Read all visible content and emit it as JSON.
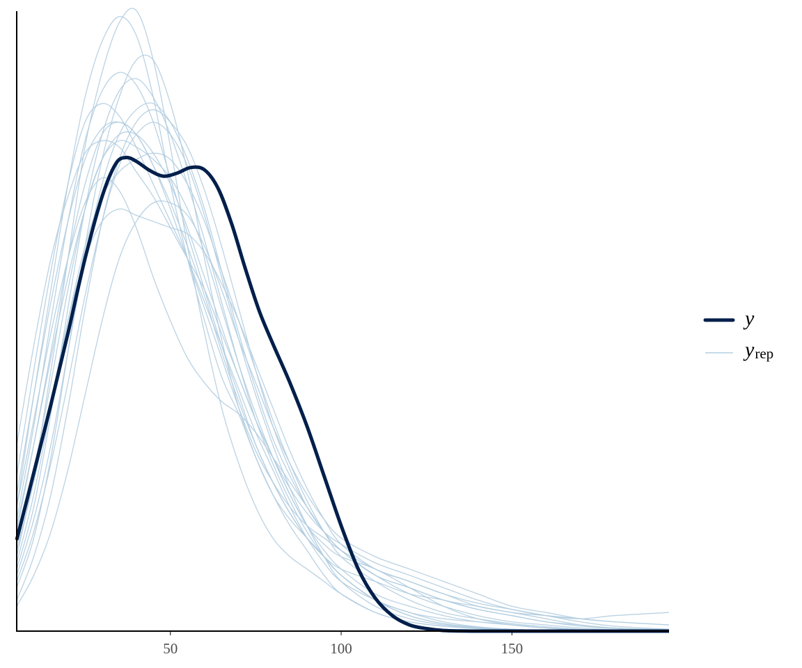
{
  "chart_data": {
    "type": "line",
    "xlim": [
      5,
      196
    ],
    "ylim": [
      0,
      1
    ],
    "x_ticks": [
      50,
      100,
      150
    ],
    "x_tick_labels": [
      "50",
      "100",
      "150"
    ],
    "y_ticks": [],
    "grid": false,
    "legend_position": "right",
    "legend": [
      {
        "label": "y",
        "style": "thick",
        "color": "#011f4b"
      },
      {
        "label": "y",
        "subscript": "rep",
        "style": "thin",
        "color": "#b3cde0"
      }
    ],
    "colors": {
      "y": "#011f4b",
      "yrep": "#b3cde0",
      "axis": "#000000"
    },
    "series": [
      {
        "name": "y",
        "x": [
          5,
          10,
          15,
          20,
          25,
          30,
          34,
          37,
          40,
          44,
          48,
          52,
          56,
          60,
          64,
          68,
          72,
          76,
          80,
          85,
          90,
          95,
          100,
          105,
          110,
          115,
          120,
          125,
          130,
          140,
          150,
          160,
          170,
          180,
          196
        ],
        "y": [
          0.147,
          0.255,
          0.365,
          0.48,
          0.6,
          0.7,
          0.753,
          0.763,
          0.757,
          0.742,
          0.733,
          0.738,
          0.747,
          0.743,
          0.713,
          0.655,
          0.583,
          0.516,
          0.463,
          0.4,
          0.33,
          0.25,
          0.17,
          0.1,
          0.053,
          0.025,
          0.01,
          0.004,
          0.001,
          0,
          0,
          0,
          0,
          0,
          0
        ]
      },
      {
        "name": "",
        "x": [
          5,
          10,
          15,
          20,
          25,
          30,
          35,
          40,
          45,
          50,
          55,
          60,
          65,
          70,
          75,
          80,
          85,
          90,
          95,
          100,
          110,
          120,
          130,
          140,
          150,
          160,
          170,
          180,
          196
        ],
        "y": [
          0.2,
          0.38,
          0.55,
          0.72,
          0.86,
          0.95,
          0.99,
          0.96,
          0.86,
          0.72,
          0.6,
          0.5,
          0.41,
          0.35,
          0.28,
          0.22,
          0.17,
          0.13,
          0.09,
          0.06,
          0.03,
          0.015,
          0.008,
          0.004,
          0.002,
          0.001,
          0,
          0,
          0
        ]
      },
      {
        "name": "",
        "x": [
          5,
          10,
          15,
          20,
          25,
          30,
          35,
          40,
          45,
          50,
          55,
          60,
          65,
          70,
          75,
          80,
          85,
          90,
          95,
          100,
          110,
          120,
          130,
          140,
          150,
          160,
          170,
          180,
          196
        ],
        "y": [
          0.12,
          0.25,
          0.42,
          0.6,
          0.78,
          0.9,
          0.98,
          1.0,
          0.92,
          0.78,
          0.62,
          0.48,
          0.36,
          0.27,
          0.2,
          0.15,
          0.12,
          0.1,
          0.08,
          0.06,
          0.03,
          0.015,
          0.008,
          0.004,
          0.002,
          0.001,
          0,
          0,
          0
        ]
      },
      {
        "name": "",
        "x": [
          5,
          10,
          15,
          20,
          25,
          30,
          35,
          40,
          45,
          50,
          55,
          60,
          65,
          70,
          75,
          80,
          85,
          90,
          95,
          100,
          110,
          120,
          130,
          140,
          150,
          160,
          170,
          180,
          196
        ],
        "y": [
          0.18,
          0.33,
          0.5,
          0.66,
          0.79,
          0.87,
          0.9,
          0.88,
          0.82,
          0.73,
          0.64,
          0.55,
          0.46,
          0.38,
          0.3,
          0.24,
          0.19,
          0.15,
          0.12,
          0.09,
          0.05,
          0.025,
          0.012,
          0.006,
          0.003,
          0.001,
          0,
          0,
          0
        ]
      },
      {
        "name": "",
        "x": [
          5,
          10,
          15,
          20,
          25,
          30,
          35,
          40,
          45,
          50,
          55,
          60,
          65,
          70,
          75,
          80,
          85,
          90,
          95,
          100,
          110,
          120,
          130,
          140,
          150,
          160,
          170,
          180,
          196
        ],
        "y": [
          0.1,
          0.2,
          0.35,
          0.52,
          0.68,
          0.8,
          0.87,
          0.89,
          0.86,
          0.8,
          0.72,
          0.63,
          0.53,
          0.43,
          0.34,
          0.27,
          0.21,
          0.16,
          0.12,
          0.09,
          0.05,
          0.03,
          0.015,
          0.007,
          0.003,
          0.001,
          0,
          0,
          0
        ]
      },
      {
        "name": "",
        "x": [
          5,
          10,
          15,
          20,
          25,
          30,
          35,
          40,
          45,
          50,
          55,
          60,
          65,
          70,
          75,
          80,
          85,
          90,
          95,
          100,
          110,
          120,
          130,
          140,
          150,
          160,
          170,
          180,
          196
        ],
        "y": [
          0.07,
          0.15,
          0.28,
          0.45,
          0.62,
          0.76,
          0.86,
          0.92,
          0.92,
          0.85,
          0.74,
          0.6,
          0.47,
          0.36,
          0.28,
          0.22,
          0.18,
          0.15,
          0.12,
          0.09,
          0.05,
          0.025,
          0.012,
          0.006,
          0.003,
          0.001,
          0,
          0,
          0
        ]
      },
      {
        "name": "",
        "x": [
          5,
          10,
          15,
          20,
          25,
          30,
          35,
          40,
          45,
          50,
          55,
          60,
          65,
          70,
          75,
          80,
          85,
          90,
          95,
          100,
          110,
          120,
          130,
          140,
          150,
          160,
          170,
          180,
          196
        ],
        "y": [
          0.25,
          0.42,
          0.58,
          0.72,
          0.82,
          0.85,
          0.83,
          0.78,
          0.72,
          0.66,
          0.6,
          0.53,
          0.46,
          0.39,
          0.32,
          0.26,
          0.2,
          0.15,
          0.11,
          0.08,
          0.05,
          0.03,
          0.02,
          0.015,
          0.01,
          0.005,
          0.002,
          0,
          0
        ]
      },
      {
        "name": "",
        "x": [
          5,
          10,
          15,
          20,
          25,
          30,
          35,
          40,
          45,
          50,
          55,
          60,
          65,
          70,
          75,
          80,
          85,
          90,
          95,
          100,
          110,
          120,
          130,
          140,
          150,
          160,
          170,
          180,
          196
        ],
        "y": [
          0.14,
          0.26,
          0.4,
          0.55,
          0.68,
          0.76,
          0.79,
          0.78,
          0.76,
          0.73,
          0.68,
          0.61,
          0.52,
          0.43,
          0.35,
          0.28,
          0.22,
          0.17,
          0.14,
          0.12,
          0.1,
          0.07,
          0.04,
          0.02,
          0.01,
          0.005,
          0.002,
          0,
          0
        ]
      },
      {
        "name": "",
        "x": [
          5,
          10,
          15,
          20,
          25,
          30,
          35,
          40,
          45,
          50,
          55,
          60,
          65,
          70,
          75,
          80,
          85,
          90,
          95,
          100,
          110,
          120,
          130,
          140,
          150,
          160,
          170,
          180,
          196
        ],
        "y": [
          0.09,
          0.18,
          0.3,
          0.45,
          0.6,
          0.72,
          0.8,
          0.84,
          0.85,
          0.82,
          0.76,
          0.68,
          0.58,
          0.48,
          0.39,
          0.31,
          0.25,
          0.2,
          0.16,
          0.13,
          0.09,
          0.06,
          0.04,
          0.025,
          0.015,
          0.01,
          0.005,
          0.002,
          0
        ]
      },
      {
        "name": "",
        "x": [
          5,
          10,
          15,
          20,
          25,
          30,
          35,
          40,
          45,
          50,
          55,
          60,
          65,
          70,
          75,
          80,
          85,
          90,
          95,
          100,
          110,
          120,
          130,
          140,
          150,
          160,
          170,
          180,
          196
        ],
        "y": [
          0.16,
          0.3,
          0.45,
          0.6,
          0.72,
          0.8,
          0.82,
          0.8,
          0.75,
          0.68,
          0.6,
          0.52,
          0.44,
          0.36,
          0.29,
          0.24,
          0.2,
          0.17,
          0.15,
          0.13,
          0.1,
          0.08,
          0.06,
          0.04,
          0.03,
          0.02,
          0.01,
          0.005,
          0.002
        ]
      },
      {
        "name": "",
        "x": [
          5,
          10,
          15,
          20,
          25,
          30,
          35,
          40,
          45,
          50,
          55,
          60,
          65,
          70,
          75,
          80,
          85,
          90,
          95,
          100,
          110,
          120,
          130,
          140,
          150,
          160,
          170,
          180,
          196
        ],
        "y": [
          0.3,
          0.46,
          0.6,
          0.7,
          0.77,
          0.79,
          0.78,
          0.74,
          0.7,
          0.65,
          0.6,
          0.55,
          0.48,
          0.41,
          0.34,
          0.28,
          0.22,
          0.17,
          0.13,
          0.1,
          0.06,
          0.04,
          0.025,
          0.015,
          0.01,
          0.005,
          0.002,
          0,
          0
        ]
      },
      {
        "name": "",
        "x": [
          5,
          10,
          15,
          20,
          25,
          30,
          35,
          40,
          45,
          50,
          55,
          60,
          65,
          70,
          75,
          80,
          85,
          90,
          95,
          100,
          110,
          120,
          130,
          140,
          150,
          160,
          170,
          180,
          196
        ],
        "y": [
          0.05,
          0.12,
          0.22,
          0.36,
          0.52,
          0.66,
          0.76,
          0.82,
          0.84,
          0.82,
          0.78,
          0.71,
          0.62,
          0.52,
          0.42,
          0.33,
          0.26,
          0.2,
          0.16,
          0.13,
          0.09,
          0.07,
          0.05,
          0.035,
          0.025,
          0.015,
          0.01,
          0.005,
          0.002
        ]
      },
      {
        "name": "",
        "x": [
          5,
          10,
          15,
          20,
          25,
          30,
          35,
          40,
          45,
          50,
          55,
          60,
          65,
          70,
          75,
          80,
          85,
          90,
          95,
          100,
          110,
          120,
          130,
          140,
          150,
          160,
          170,
          180,
          196
        ],
        "y": [
          0.11,
          0.22,
          0.36,
          0.5,
          0.62,
          0.7,
          0.74,
          0.76,
          0.77,
          0.76,
          0.72,
          0.66,
          0.58,
          0.5,
          0.42,
          0.34,
          0.27,
          0.21,
          0.16,
          0.12,
          0.08,
          0.05,
          0.03,
          0.02,
          0.012,
          0.007,
          0.003,
          0.001,
          0
        ]
      },
      {
        "name": "",
        "x": [
          5,
          10,
          15,
          20,
          25,
          30,
          35,
          40,
          45,
          50,
          55,
          60,
          65,
          70,
          75,
          80,
          85,
          90,
          95,
          100,
          110,
          120,
          130,
          140,
          150,
          160,
          170,
          180,
          196
        ],
        "y": [
          0.04,
          0.09,
          0.16,
          0.26,
          0.38,
          0.5,
          0.6,
          0.66,
          0.69,
          0.69,
          0.67,
          0.62,
          0.55,
          0.47,
          0.4,
          0.33,
          0.27,
          0.22,
          0.18,
          0.15,
          0.12,
          0.1,
          0.08,
          0.06,
          0.04,
          0.03,
          0.02,
          0.015,
          0.01
        ]
      },
      {
        "name": "",
        "x": [
          5,
          10,
          15,
          20,
          25,
          30,
          35,
          40,
          45,
          50,
          55,
          60,
          65,
          70,
          75,
          80,
          85,
          90,
          95,
          100,
          110,
          120,
          130,
          140,
          150,
          160,
          170,
          180,
          196
        ],
        "y": [
          0.2,
          0.34,
          0.48,
          0.6,
          0.69,
          0.73,
          0.71,
          0.65,
          0.57,
          0.5,
          0.44,
          0.4,
          0.37,
          0.35,
          0.32,
          0.28,
          0.24,
          0.2,
          0.16,
          0.13,
          0.09,
          0.07,
          0.05,
          0.04,
          0.03,
          0.025,
          0.02,
          0.015,
          0.01
        ]
      },
      {
        "name": "",
        "x": [
          5,
          10,
          15,
          20,
          25,
          30,
          35,
          40,
          45,
          50,
          55,
          60,
          65,
          70,
          75,
          80,
          85,
          90,
          95,
          100,
          110,
          120,
          130,
          140,
          150,
          160,
          170,
          180,
          196
        ],
        "y": [
          0.08,
          0.16,
          0.27,
          0.4,
          0.54,
          0.66,
          0.75,
          0.8,
          0.82,
          0.8,
          0.75,
          0.67,
          0.57,
          0.47,
          0.38,
          0.3,
          0.23,
          0.17,
          0.12,
          0.08,
          0.04,
          0.02,
          0.01,
          0.005,
          0.002,
          0.001,
          0,
          0,
          0
        ]
      },
      {
        "name": "",
        "x": [
          5,
          10,
          15,
          20,
          25,
          30,
          35,
          40,
          45,
          50,
          55,
          60,
          65,
          70,
          75,
          80,
          85,
          90,
          95,
          100,
          110,
          120,
          130,
          140,
          150,
          160,
          170,
          180,
          196
        ],
        "y": [
          0.22,
          0.38,
          0.53,
          0.66,
          0.76,
          0.81,
          0.82,
          0.8,
          0.75,
          0.69,
          0.62,
          0.54,
          0.45,
          0.37,
          0.3,
          0.24,
          0.19,
          0.15,
          0.12,
          0.1,
          0.08,
          0.06,
          0.05,
          0.035,
          0.025,
          0.015,
          0.008,
          0.004,
          0.001
        ]
      },
      {
        "name": "",
        "x": [
          5,
          10,
          15,
          20,
          25,
          30,
          35,
          40,
          45,
          50,
          55,
          60,
          65,
          70,
          75,
          80,
          85,
          90,
          95,
          100,
          110,
          120,
          130,
          140,
          150,
          160,
          170,
          180,
          196
        ],
        "y": [
          0.13,
          0.24,
          0.37,
          0.5,
          0.6,
          0.66,
          0.68,
          0.67,
          0.66,
          0.65,
          0.64,
          0.61,
          0.56,
          0.5,
          0.43,
          0.36,
          0.29,
          0.23,
          0.18,
          0.14,
          0.1,
          0.08,
          0.06,
          0.045,
          0.035,
          0.025,
          0.015,
          0.008,
          0.003
        ]
      },
      {
        "name": "",
        "x": [
          5,
          10,
          15,
          20,
          25,
          30,
          35,
          40,
          45,
          50,
          55,
          60,
          65,
          70,
          75,
          80,
          85,
          90,
          95,
          100,
          110,
          120,
          130,
          140,
          150,
          160,
          170,
          180,
          196
        ],
        "y": [
          0.17,
          0.3,
          0.44,
          0.57,
          0.68,
          0.76,
          0.8,
          0.8,
          0.77,
          0.72,
          0.65,
          0.57,
          0.49,
          0.41,
          0.34,
          0.28,
          0.23,
          0.19,
          0.16,
          0.14,
          0.11,
          0.09,
          0.07,
          0.05,
          0.035,
          0.025,
          0.02,
          0.025,
          0.03
        ]
      }
    ]
  }
}
